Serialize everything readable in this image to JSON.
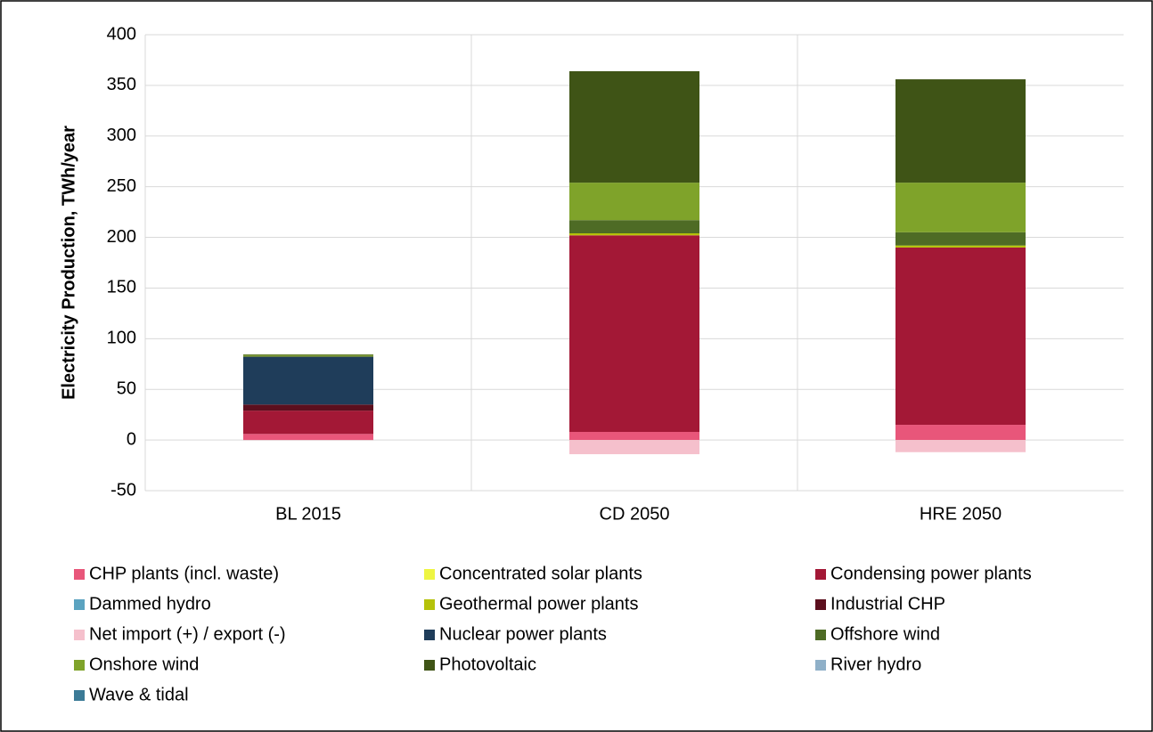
{
  "chart_data": {
    "type": "stacked_bar",
    "y_label": "Electricity Production, TWh/year",
    "categories": [
      "BL 2015",
      "CD 2050",
      "HRE 2050"
    ],
    "ylim": [
      -50,
      400
    ],
    "yticks": [
      -50,
      0,
      50,
      100,
      150,
      200,
      250,
      300,
      350,
      400
    ],
    "grid": true,
    "series": [
      {
        "name": "CHP plants (incl. waste)",
        "color": "#e8567a",
        "values": [
          6,
          8,
          15
        ]
      },
      {
        "name": "Concentrated solar plants",
        "color": "#eef542",
        "values": [
          0,
          0,
          0
        ]
      },
      {
        "name": "Condensing power plants",
        "color": "#a31836",
        "values": [
          23,
          194,
          175
        ]
      },
      {
        "name": "Dammed hydro",
        "color": "#5ba3c0",
        "values": [
          0,
          0,
          0
        ]
      },
      {
        "name": "Geothermal power plants",
        "color": "#b5c20a",
        "values": [
          0,
          2,
          2
        ]
      },
      {
        "name": "Industrial CHP",
        "color": "#5c0f1e",
        "values": [
          6,
          0,
          0
        ]
      },
      {
        "name": "Net import (+) / export (-)",
        "color": "#f5c0cc",
        "values": [
          0,
          -14,
          -12
        ]
      },
      {
        "name": "Nuclear power plants",
        "color": "#1f3d5a",
        "values": [
          47,
          0,
          0
        ]
      },
      {
        "name": "Offshore wind",
        "color": "#4e6b25",
        "values": [
          1,
          13,
          13
        ]
      },
      {
        "name": "Onshore wind",
        "color": "#7fa32a",
        "values": [
          1,
          37,
          49
        ]
      },
      {
        "name": "Photovoltaic",
        "color": "#3f5416",
        "values": [
          0.5,
          110,
          102
        ]
      },
      {
        "name": "River hydro",
        "color": "#8fb0c8",
        "values": [
          0,
          0,
          0
        ]
      },
      {
        "name": "Wave & tidal",
        "color": "#3b7a96",
        "values": [
          0,
          0,
          0
        ]
      }
    ]
  }
}
